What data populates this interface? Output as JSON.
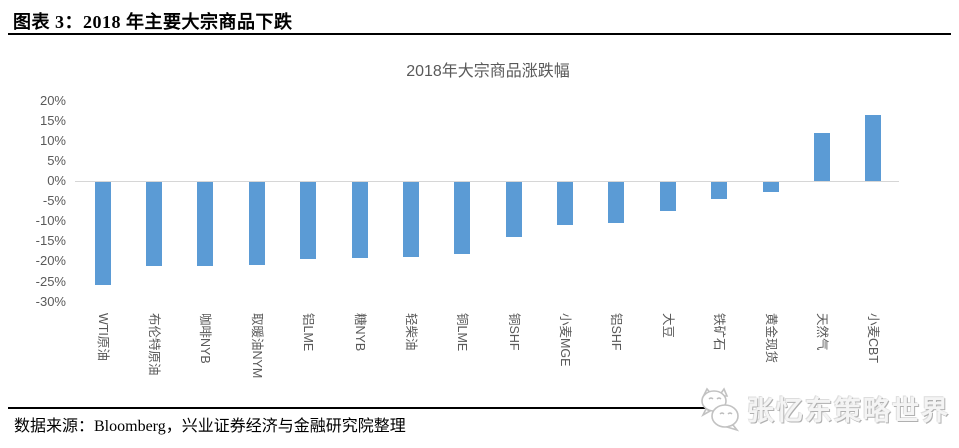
{
  "header": {
    "title": "图表 3：2018 年主要大宗商品下跌"
  },
  "chart_data": {
    "type": "bar",
    "title": "2018年大宗商品涨跌幅",
    "categories": [
      "WTI原油",
      "布伦特原油",
      "咖啡NYB",
      "取暖油NYM",
      "铝LME",
      "糖NYB",
      "轻柴油",
      "铜LME",
      "铜SHF",
      "小麦MGE",
      "铝SHF",
      "大豆",
      "铁矿石",
      "黄金现货",
      "天然气",
      "小麦CBT"
    ],
    "values": [
      -25.5,
      -21,
      -20.8,
      -20.6,
      -19.2,
      -18.9,
      -18.6,
      -17.9,
      -13.7,
      -10.8,
      -10.2,
      -7.2,
      -4.2,
      -2.4,
      12,
      16.3
    ],
    "y_ticks": [
      "20%",
      "15%",
      "10%",
      "5%",
      "0%",
      "-5%",
      "-10%",
      "-15%",
      "-20%",
      "-25%",
      "-30%"
    ],
    "ylim": [
      -30,
      20
    ],
    "xlabel": "",
    "ylabel": "",
    "grid": false,
    "legend": "none",
    "bar_color": "#5b9bd5",
    "axis_label_color": "#595959",
    "zero_line_color": "#d6d6d6"
  },
  "footer": {
    "source": "数据来源：Bloomberg，兴业证券经济与金融研究院整理"
  },
  "watermark": {
    "text": "张忆东策略世界",
    "icon": "wechat-cat-logo"
  }
}
